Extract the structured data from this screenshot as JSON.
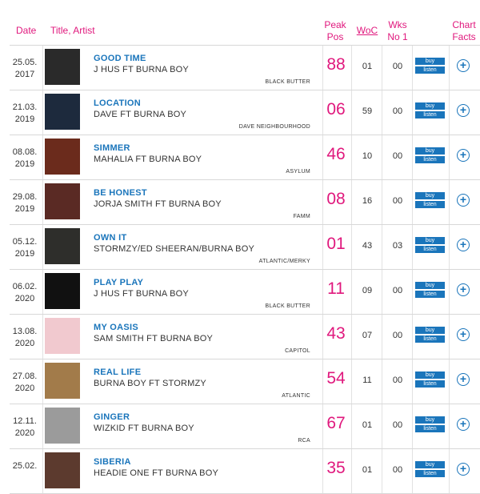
{
  "header": {
    "date": "Date",
    "title_artist": "Title, Artist",
    "peak_pos": "Peak Pos",
    "woc": "WoC",
    "wks_no1": "Wks No 1",
    "chart_facts": "Chart Facts"
  },
  "buttons": {
    "buy": "buy",
    "listen": "listen"
  },
  "rows": [
    {
      "date": "25.05.",
      "year": "2017",
      "title": "GOOD TIME",
      "artist": "J HUS FT BURNA BOY",
      "label": "BLACK BUTTER",
      "peak": "88",
      "woc": "01",
      "wks": "00",
      "art_color": "#2a2a2a"
    },
    {
      "date": "21.03.",
      "year": "2019",
      "title": "LOCATION",
      "artist": "DAVE FT BURNA BOY",
      "label": "DAVE NEIGHBOURHOOD",
      "peak": "06",
      "woc": "59",
      "wks": "00",
      "art_color": "#1d2a3d"
    },
    {
      "date": "08.08.",
      "year": "2019",
      "title": "SIMMER",
      "artist": "MAHALIA FT BURNA BOY",
      "label": "ASYLUM",
      "peak": "46",
      "woc": "10",
      "wks": "00",
      "art_color": "#6b2b1c"
    },
    {
      "date": "29.08.",
      "year": "2019",
      "title": "BE HONEST",
      "artist": "JORJA SMITH FT BURNA BOY",
      "label": "FAMM",
      "peak": "08",
      "woc": "16",
      "wks": "00",
      "art_color": "#5a2a24"
    },
    {
      "date": "05.12.",
      "year": "2019",
      "title": "OWN IT",
      "artist": "STORMZY/ED SHEERAN/BURNA BOY",
      "label": "ATLANTIC/MERKY",
      "peak": "01",
      "woc": "43",
      "wks": "03",
      "art_color": "#2e2e2b"
    },
    {
      "date": "06.02.",
      "year": "2020",
      "title": "PLAY PLAY",
      "artist": "J HUS FT BURNA BOY",
      "label": "BLACK BUTTER",
      "peak": "11",
      "woc": "09",
      "wks": "00",
      "art_color": "#111111"
    },
    {
      "date": "13.08.",
      "year": "2020",
      "title": "MY OASIS",
      "artist": "SAM SMITH FT BURNA BOY",
      "label": "CAPITOL",
      "peak": "43",
      "woc": "07",
      "wks": "00",
      "art_color": "#f1c9cf"
    },
    {
      "date": "27.08.",
      "year": "2020",
      "title": "REAL LIFE",
      "artist": "BURNA BOY FT STORMZY",
      "label": "ATLANTIC",
      "peak": "54",
      "woc": "11",
      "wks": "00",
      "art_color": "#a27b4a"
    },
    {
      "date": "12.11.",
      "year": "2020",
      "title": "GINGER",
      "artist": "WIZKID FT BURNA BOY",
      "label": "RCA",
      "peak": "67",
      "woc": "01",
      "wks": "00",
      "art_color": "#9b9b9b"
    },
    {
      "date": "25.02.",
      "year": "",
      "title": "SIBERIA",
      "artist": "HEADIE ONE FT BURNA BOY",
      "label": "",
      "peak": "35",
      "woc": "01",
      "wks": "00",
      "art_color": "#5c3a2e"
    }
  ]
}
